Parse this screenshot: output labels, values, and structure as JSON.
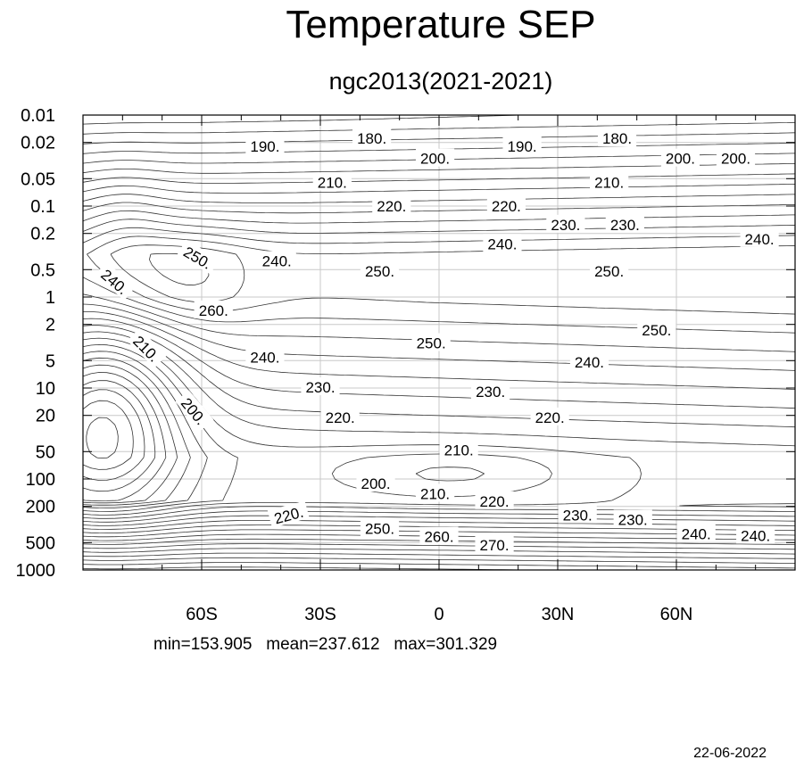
{
  "chart_data": {
    "type": "contour",
    "title": "Temperature SEP",
    "subtitle": "ngc2013(2021-2021)",
    "xlabel": "",
    "ylabel": "",
    "x_range": [
      -90,
      90
    ],
    "x_ticks": [
      {
        "value": -60,
        "label": "60S"
      },
      {
        "value": -30,
        "label": "30S"
      },
      {
        "value": 0,
        "label": "0"
      },
      {
        "value": 30,
        "label": "30N"
      },
      {
        "value": 60,
        "label": "60N"
      }
    ],
    "y_scale": "log-reversed",
    "y_range": [
      1000,
      0.01
    ],
    "y_ticks": [
      {
        "value": 0.01,
        "label": "0.01"
      },
      {
        "value": 0.02,
        "label": "0.02"
      },
      {
        "value": 0.05,
        "label": "0.05"
      },
      {
        "value": 0.1,
        "label": "0.1"
      },
      {
        "value": 0.2,
        "label": "0.2"
      },
      {
        "value": 0.5,
        "label": "0.5"
      },
      {
        "value": 1,
        "label": "1"
      },
      {
        "value": 2,
        "label": "2"
      },
      {
        "value": 5,
        "label": "5"
      },
      {
        "value": 10,
        "label": "10"
      },
      {
        "value": 20,
        "label": "20"
      },
      {
        "value": 50,
        "label": "50"
      },
      {
        "value": 100,
        "label": "100"
      },
      {
        "value": 200,
        "label": "200"
      },
      {
        "value": 500,
        "label": "500"
      },
      {
        "value": 1000,
        "label": "1000"
      }
    ],
    "grid": true,
    "contour_labels": [
      {
        "lat": -44,
        "p": 0.022,
        "text": "190."
      },
      {
        "lat": -17,
        "p": 0.018,
        "text": "180."
      },
      {
        "lat": -1,
        "p": 0.03,
        "text": "200."
      },
      {
        "lat": -27,
        "p": 0.055,
        "text": "210."
      },
      {
        "lat": -12,
        "p": 0.1,
        "text": "220."
      },
      {
        "lat": 21,
        "p": 0.022,
        "text": "190."
      },
      {
        "lat": 45,
        "p": 0.018,
        "text": "180."
      },
      {
        "lat": 61,
        "p": 0.03,
        "text": "200."
      },
      {
        "lat": 75,
        "p": 0.03,
        "text": "200."
      },
      {
        "lat": 43,
        "p": 0.055,
        "text": "210."
      },
      {
        "lat": 17,
        "p": 0.1,
        "text": "220."
      },
      {
        "lat": 32,
        "p": 0.16,
        "text": "230."
      },
      {
        "lat": 47,
        "p": 0.16,
        "text": "230."
      },
      {
        "lat": 16,
        "p": 0.26,
        "text": "240."
      },
      {
        "lat": 81,
        "p": 0.23,
        "text": "240."
      },
      {
        "lat": -61,
        "p": 0.37,
        "text": "250.",
        "angle": 30
      },
      {
        "lat": -41,
        "p": 0.4,
        "text": "240."
      },
      {
        "lat": -15,
        "p": 0.52,
        "text": "250."
      },
      {
        "lat": 43,
        "p": 0.52,
        "text": "250."
      },
      {
        "lat": -82,
        "p": 0.68,
        "text": "240.",
        "angle": 40
      },
      {
        "lat": -57,
        "p": 1.4,
        "text": "260."
      },
      {
        "lat": -74,
        "p": 3.7,
        "text": "210.",
        "angle": 45
      },
      {
        "lat": -2,
        "p": 3.2,
        "text": "250."
      },
      {
        "lat": 55,
        "p": 2.3,
        "text": "250."
      },
      {
        "lat": -44,
        "p": 4.6,
        "text": "240."
      },
      {
        "lat": 38,
        "p": 5.2,
        "text": "240."
      },
      {
        "lat": -30,
        "p": 9.8,
        "text": "230."
      },
      {
        "lat": 13,
        "p": 11,
        "text": "230."
      },
      {
        "lat": -62,
        "p": 18,
        "text": "200.",
        "angle": 50
      },
      {
        "lat": -25,
        "p": 21,
        "text": "220."
      },
      {
        "lat": 28,
        "p": 21,
        "text": "220."
      },
      {
        "lat": 5,
        "p": 48,
        "text": "210."
      },
      {
        "lat": -16,
        "p": 112,
        "text": "200."
      },
      {
        "lat": -1,
        "p": 145,
        "text": "210."
      },
      {
        "lat": 14,
        "p": 175,
        "text": "220."
      },
      {
        "lat": -38,
        "p": 250,
        "text": "220.",
        "angle": -15
      },
      {
        "lat": 35,
        "p": 250,
        "text": "230."
      },
      {
        "lat": 49,
        "p": 280,
        "text": "230."
      },
      {
        "lat": -15,
        "p": 350,
        "text": "250."
      },
      {
        "lat": 0,
        "p": 430,
        "text": "260."
      },
      {
        "lat": 14,
        "p": 530,
        "text": "270."
      },
      {
        "lat": 65,
        "p": 400,
        "text": "240."
      },
      {
        "lat": 80,
        "p": 420,
        "text": "240."
      }
    ]
  },
  "stats": {
    "min": "min=153.905",
    "mean": "mean=237.612",
    "max": "max=301.329"
  },
  "date": "22-06-2022"
}
